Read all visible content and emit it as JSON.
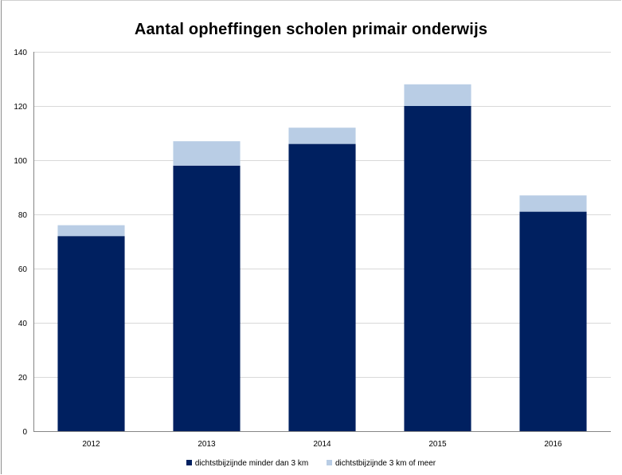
{
  "chart_data": {
    "type": "bar",
    "stacked": true,
    "title": "Aantal opheffingen scholen primair onderwijs",
    "categories": [
      "2012",
      "2013",
      "2014",
      "2015",
      "2016"
    ],
    "series": [
      {
        "name": "dichtstbijzijnde minder dan 3 km",
        "color": "#002060",
        "values": [
          72,
          98,
          106,
          120,
          81
        ]
      },
      {
        "name": "dichtstbijzijnde 3 km of meer",
        "color": "#b9cde5",
        "values": [
          4,
          9,
          6,
          8,
          6
        ]
      }
    ],
    "ylim": [
      0,
      140
    ],
    "yticks": [
      0,
      20,
      40,
      60,
      80,
      100,
      120,
      140
    ],
    "grid": true,
    "legend": "bottom"
  }
}
